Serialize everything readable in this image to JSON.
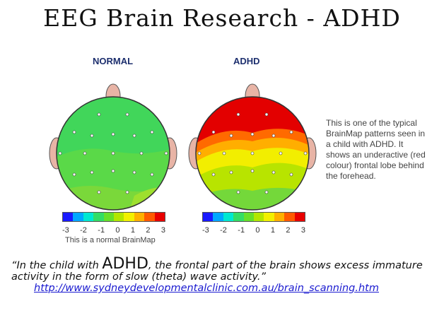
{
  "title": "EEG Brain Research - ADHD",
  "maps": {
    "normal": {
      "label": "NORMAL"
    },
    "adhd": {
      "label": "ADHD"
    }
  },
  "scale": {
    "ticks": [
      "-3",
      "-2",
      "-1",
      "0",
      "1",
      "2",
      "3"
    ],
    "colors": [
      "#1a1aff",
      "#00a8ff",
      "#00e8d0",
      "#33dd66",
      "#66e02a",
      "#b3e600",
      "#f2f000",
      "#ffb000",
      "#ff5a00",
      "#e80000"
    ]
  },
  "normal_caption": "This is a normal BrainMap",
  "side_text": "This is one of the typical BrainMap patterns seen in a child with ADHD. It shows an underactive (red colour) frontal lobe behind the forehead.",
  "quote": {
    "open": "“In the child with ",
    "emphasis": "ADHD",
    "rest": ", the frontal part of the brain shows excess immature activity in the form of slow (theta) wave activity.”"
  },
  "link": "http://www.sydneydevelopmentalclinic.com.au/brain_scanning.htm"
}
